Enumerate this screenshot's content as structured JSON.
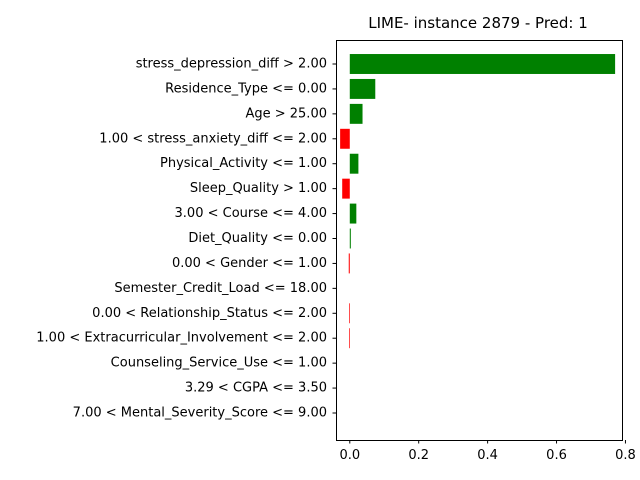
{
  "chart_data": {
    "type": "bar",
    "orientation": "horizontal",
    "title": "LIME- instance 2879 - Pred: 1",
    "xlabel": "",
    "ylabel": "",
    "xlim": [
      -0.04,
      0.79
    ],
    "xticks": [
      0.0,
      0.2,
      0.4,
      0.6,
      0.8
    ],
    "xtick_labels": [
      "0.0",
      "0.2",
      "0.4",
      "0.6",
      "0.8"
    ],
    "grid": false,
    "positive_color": "#008000",
    "negative_color": "#ff0000",
    "categories": [
      "stress_depression_diff > 2.00",
      "Residence_Type <= 0.00",
      "Age > 25.00",
      "1.00 < stress_anxiety_diff <= 2.00",
      "Physical_Activity <= 1.00",
      "Sleep_Quality > 1.00",
      "3.00 < Course <= 4.00",
      "Diet_Quality <= 0.00",
      "0.00 < Gender <= 1.00",
      "Semester_Credit_Load <= 18.00",
      "0.00 < Relationship_Status <= 2.00",
      "1.00 < Extracurricular_Involvement <= 2.00",
      "Counseling_Service_Use <= 1.00",
      "3.29 < CGPA <= 3.50",
      "7.00 < Mental_Severity_Score <= 9.00"
    ],
    "values": [
      0.77,
      0.074,
      0.037,
      -0.028,
      0.025,
      -0.022,
      0.019,
      0.003,
      -0.003,
      0.0,
      -0.002,
      -0.002,
      0.0,
      0.0,
      0.0
    ]
  }
}
